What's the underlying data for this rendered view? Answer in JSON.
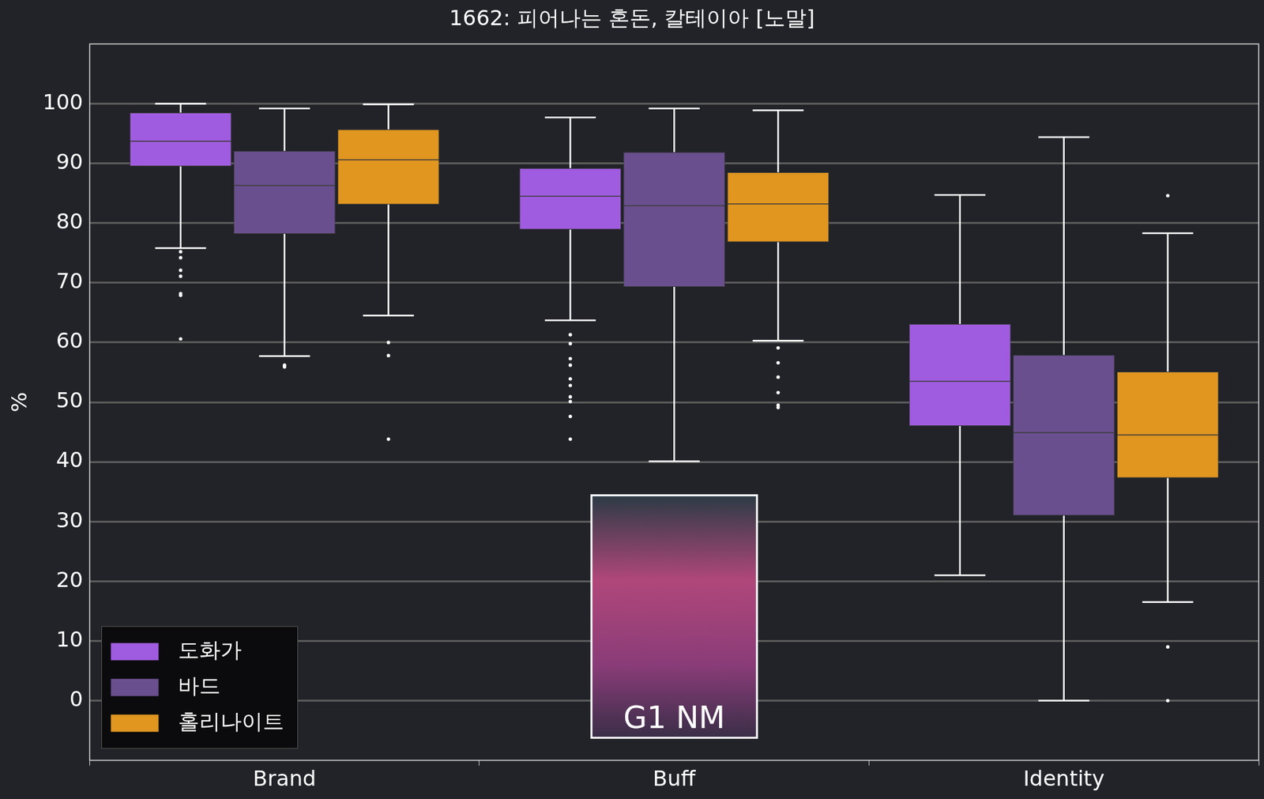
{
  "chart_data": {
    "type": "boxplot",
    "title": "1662: 피어나는 혼돈, 칼테이아 [노말]",
    "y_label": "%",
    "annotation": "G1 NM",
    "categories": [
      "Brand",
      "Buff",
      "Identity"
    ],
    "series": [
      {
        "name": "도화가",
        "color": "#a05ce0",
        "values": [
          {
            "whisker_low": 75.8,
            "q1": 89.5,
            "median": 93.7,
            "q3": 98.5,
            "whisker_high": 100,
            "outliers": [
              75.2,
              74.2,
              72.1,
              71.1,
              68.2,
              67.9,
              60.6
            ]
          },
          {
            "whisker_low": 63.7,
            "q1": 78.9,
            "median": 84.5,
            "q3": 89.2,
            "whisker_high": 97.7,
            "outliers": [
              61.3,
              59.8,
              57.3,
              56.2,
              53.9,
              52.8,
              50.9,
              50.1,
              47.6,
              43.8
            ]
          },
          {
            "whisker_low": 21.0,
            "q1": 46.0,
            "median": 53.5,
            "q3": 63.1,
            "whisker_high": 84.7,
            "outliers": []
          }
        ]
      },
      {
        "name": "바드",
        "color": "#6a4f8f",
        "values": [
          {
            "whisker_low": 57.7,
            "q1": 78.2,
            "median": 86.3,
            "q3": 92.1,
            "whisker_high": 99.2,
            "outliers": [
              56.2,
              55.9
            ]
          },
          {
            "whisker_low": 40.1,
            "q1": 69.3,
            "median": 82.9,
            "q3": 91.9,
            "whisker_high": 99.2,
            "outliers": []
          },
          {
            "whisker_low": 0,
            "q1": 31.0,
            "median": 44.9,
            "q3": 57.9,
            "whisker_high": 94.4,
            "outliers": []
          }
        ]
      },
      {
        "name": "홀리나이트",
        "color": "#e0961f",
        "values": [
          {
            "whisker_low": 64.5,
            "q1": 83.1,
            "median": 90.6,
            "q3": 95.7,
            "whisker_high": 99.9,
            "outliers": [
              60.0,
              57.8,
              43.8
            ]
          },
          {
            "whisker_low": 60.3,
            "q1": 76.8,
            "median": 83.2,
            "q3": 88.5,
            "whisker_high": 98.9,
            "outliers": [
              59.1,
              56.6,
              54.2,
              51.6,
              49.5,
              49.1
            ]
          },
          {
            "whisker_low": 16.5,
            "q1": 37.3,
            "median": 44.5,
            "q3": 55.1,
            "whisker_high": 78.3,
            "outliers": [
              84.6,
              9.0,
              0
            ]
          }
        ]
      }
    ],
    "ylim": [
      -10,
      110
    ],
    "yticks": [
      0,
      10,
      20,
      30,
      40,
      50,
      60,
      70,
      80,
      90,
      100
    ],
    "grid": true,
    "legend": "lower left"
  }
}
